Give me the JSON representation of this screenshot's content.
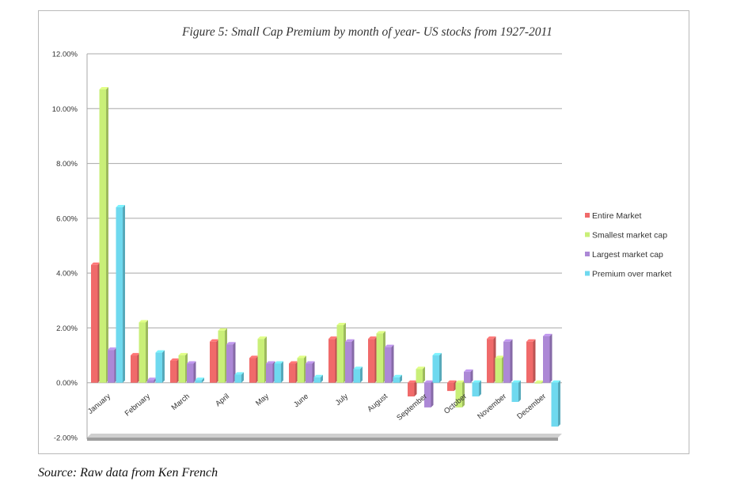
{
  "source_text": "Source: Raw data from Ken French",
  "chart_data": {
    "type": "bar",
    "title": "Figure 5: Small Cap Premium by month of year- US stocks from 1927-2011",
    "xlabel": "",
    "ylabel": "",
    "ylim": [
      -0.02,
      0.12
    ],
    "yticks": [
      "-2.00%",
      "0.00%",
      "2.00%",
      "4.00%",
      "6.00%",
      "8.00%",
      "10.00%",
      "12.00%"
    ],
    "ytick_values": [
      -0.02,
      0,
      0.02,
      0.04,
      0.06,
      0.08,
      0.1,
      0.12
    ],
    "grid": true,
    "legend_position": "right",
    "categories": [
      "January",
      "February",
      "March",
      "April",
      "May",
      "June",
      "July",
      "August",
      "September",
      "October",
      "November",
      "December"
    ],
    "series": [
      {
        "name": "Entire Market",
        "color": "#f06a6a",
        "values": [
          0.043,
          0.01,
          0.008,
          0.015,
          0.009,
          0.007,
          0.016,
          0.016,
          -0.005,
          -0.003,
          0.016,
          0.015
        ]
      },
      {
        "name": "Smallest market cap",
        "color": "#c9ef78",
        "values": [
          0.107,
          0.022,
          0.01,
          0.019,
          0.016,
          0.009,
          0.021,
          0.018,
          0.005,
          -0.009,
          0.009,
          0.0
        ]
      },
      {
        "name": "Largest market cap",
        "color": "#ac88d6",
        "values": [
          0.012,
          0.001,
          0.007,
          0.014,
          0.007,
          0.007,
          0.015,
          0.013,
          -0.009,
          0.004,
          0.015,
          0.017
        ]
      },
      {
        "name": "Premium over market",
        "color": "#6fd9ef",
        "values": [
          0.064,
          0.011,
          0.001,
          0.003,
          0.007,
          0.002,
          0.005,
          0.002,
          0.01,
          -0.005,
          -0.007,
          -0.016
        ]
      }
    ]
  }
}
